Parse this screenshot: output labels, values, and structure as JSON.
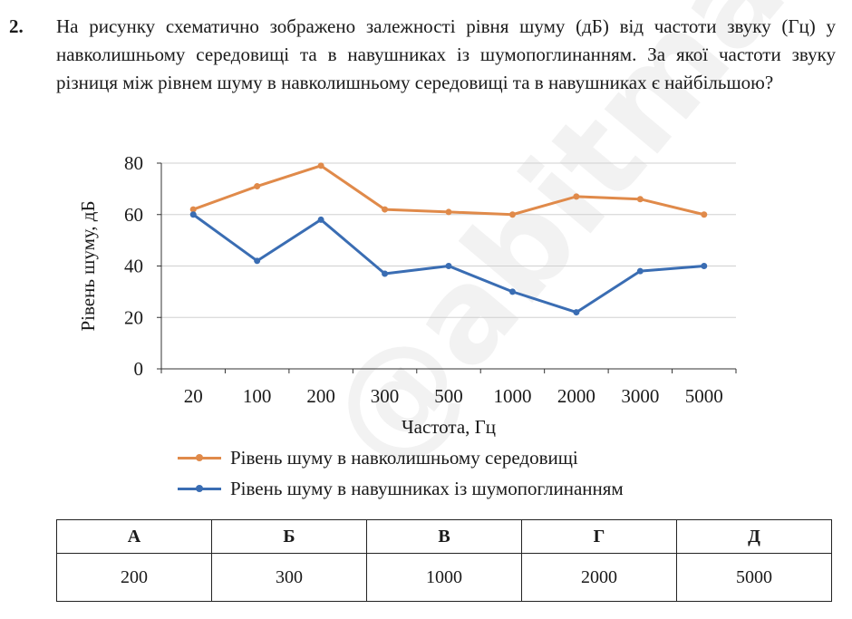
{
  "problem": {
    "number": "2.",
    "text": "На рисунку схематично зображено залежності рівня шуму (дБ) від частоти звуку (Гц) у навколишньому середовищі та в навушниках із шумопоглинанням. За якої частоти звуку різниця між рівнем шуму в навколишньому середовищі та в навушниках є найбільшою?"
  },
  "watermark": "@abitmath",
  "chart_data": {
    "type": "line",
    "categories": [
      "20",
      "100",
      "200",
      "300",
      "500",
      "1000",
      "2000",
      "3000",
      "5000"
    ],
    "series": [
      {
        "name": "Рівень шуму в навколишньому середовищі",
        "values": [
          62,
          71,
          79,
          62,
          61,
          60,
          67,
          66,
          60
        ],
        "color": "#e08a4a"
      },
      {
        "name": "Рівень шуму в навушниках із шумопоглинанням",
        "values": [
          60,
          42,
          58,
          37,
          40,
          30,
          22,
          38,
          40
        ],
        "color": "#3a6db3"
      }
    ],
    "xlabel": "Частота, Гц",
    "ylabel": "Рівень шуму, дБ",
    "ylim": [
      0,
      80
    ],
    "yticks": [
      "0",
      "20",
      "40",
      "60",
      "80"
    ],
    "grid": true,
    "legend": "bottom"
  },
  "answers": {
    "headers": [
      "А",
      "Б",
      "В",
      "Г",
      "Д"
    ],
    "values": [
      "200",
      "300",
      "1000",
      "2000",
      "5000"
    ]
  }
}
